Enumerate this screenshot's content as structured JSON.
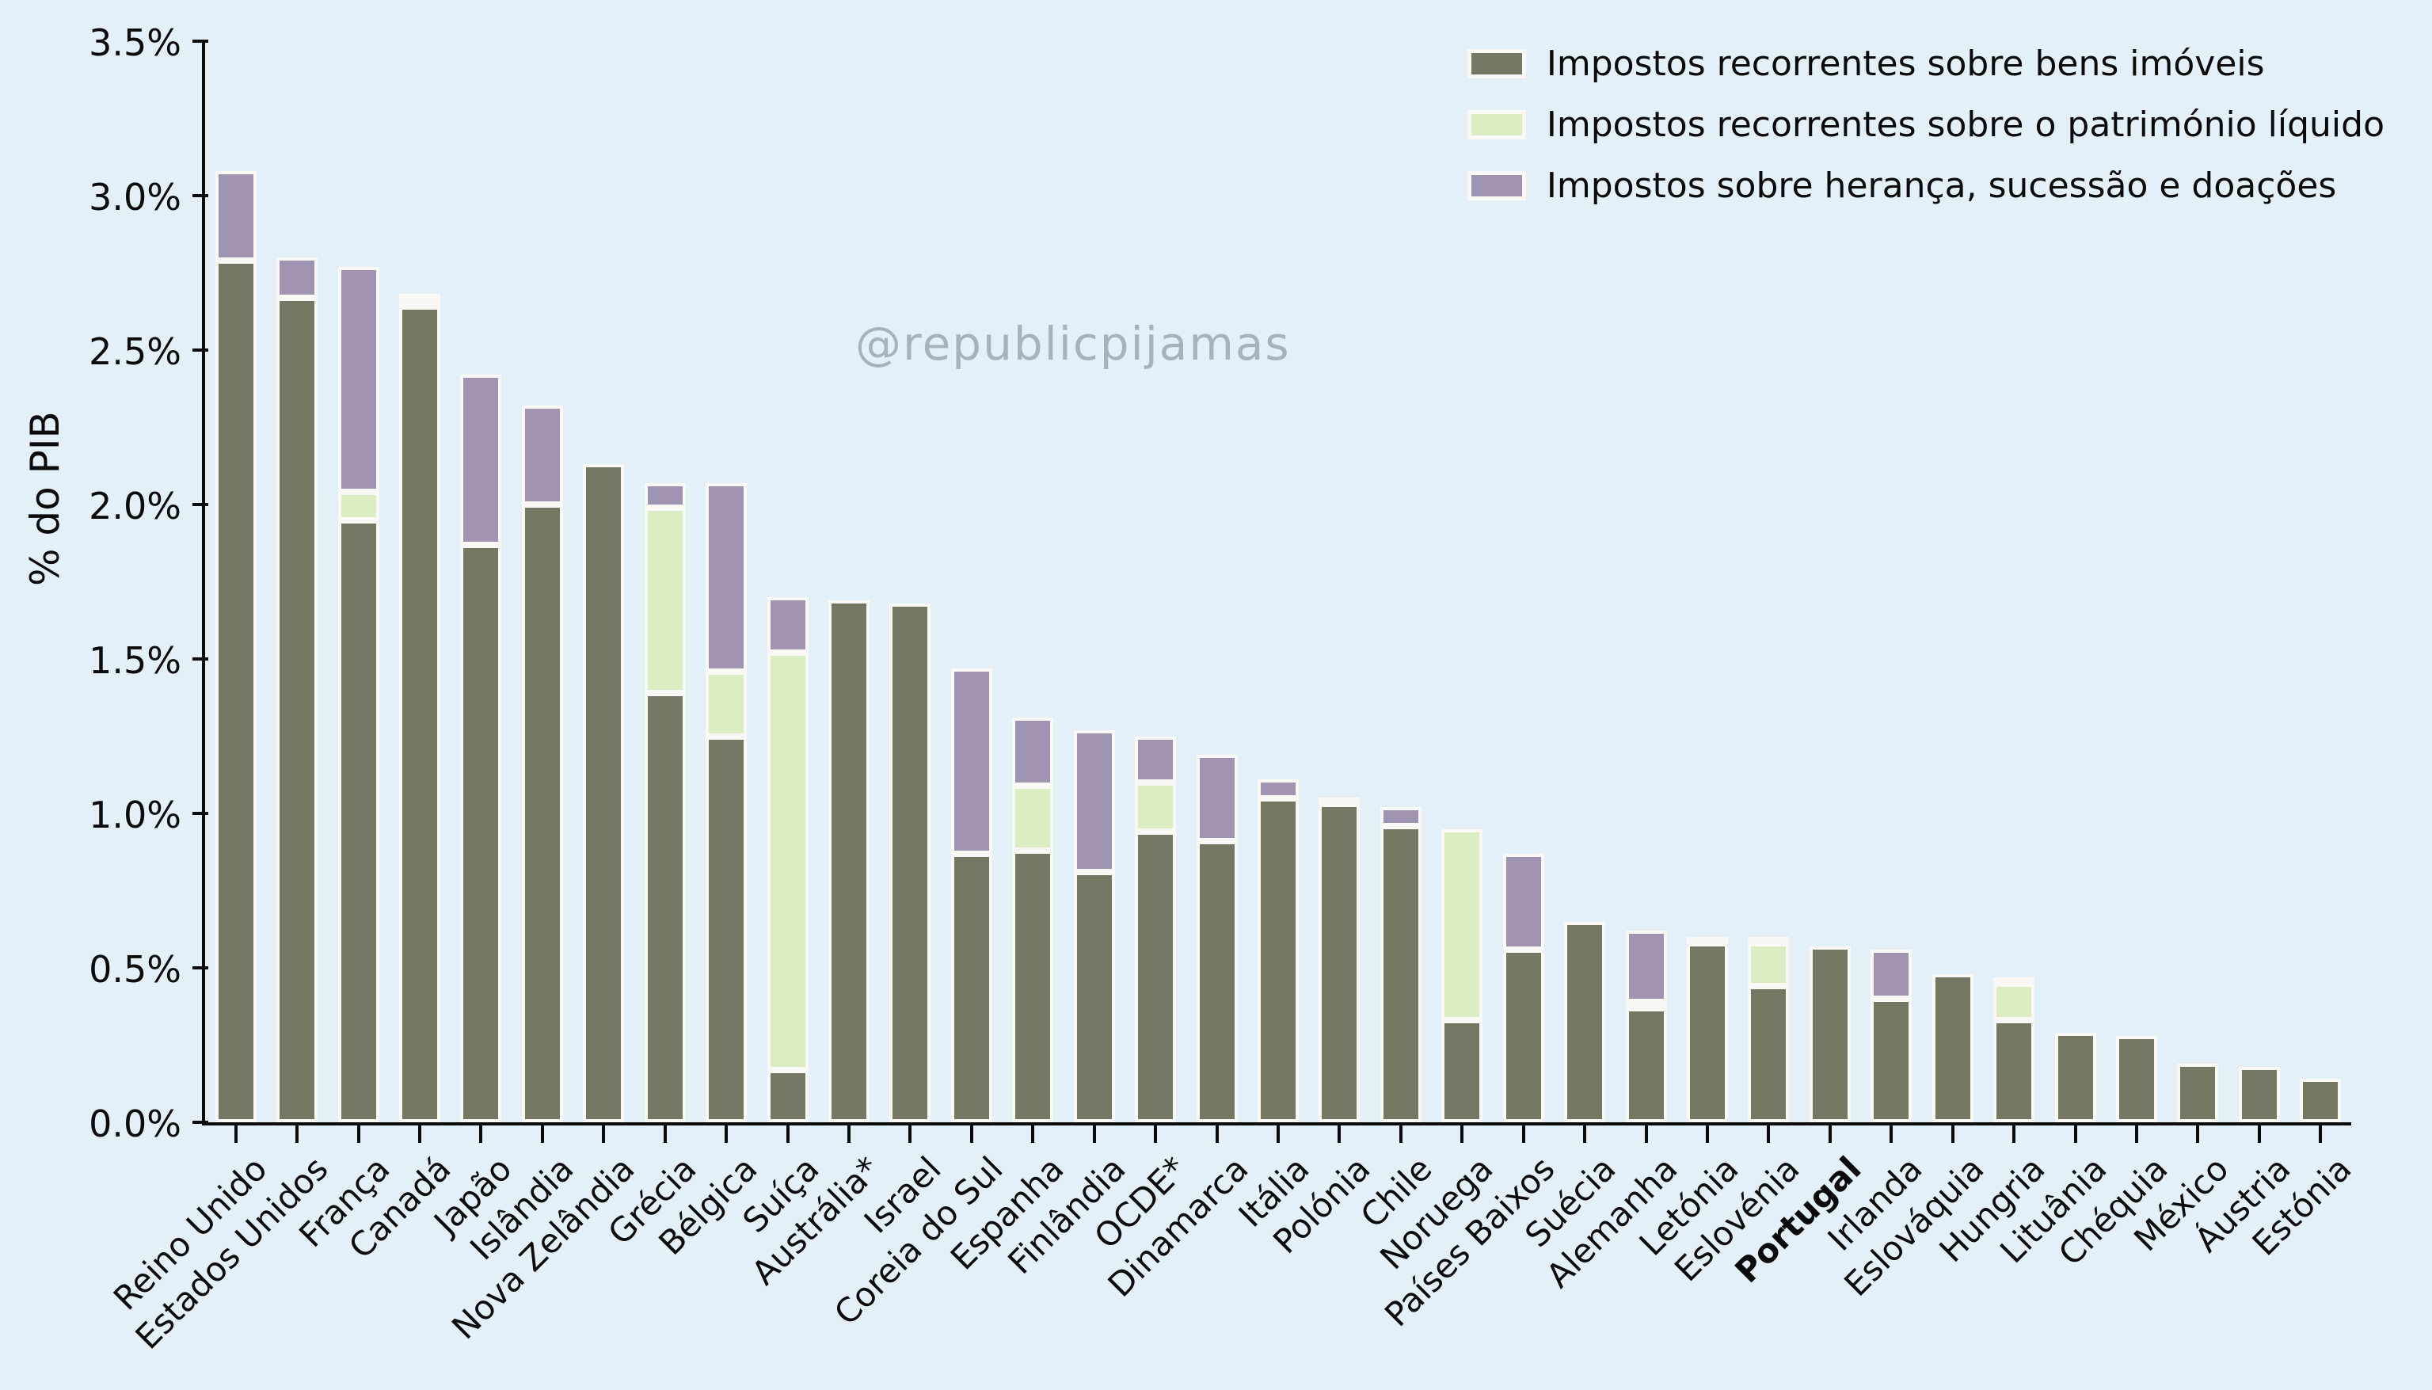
{
  "chart_data": {
    "type": "bar",
    "subtype": "stacked-vertical",
    "ylabel": "% do PIB",
    "watermark": "@republicpijamas",
    "ylim": [
      0,
      3.5
    ],
    "y_tick_labels": [
      "0.0%",
      "0.5%",
      "1.0%",
      "1.5%",
      "2.0%",
      "2.5%",
      "3.0%",
      "3.5%"
    ],
    "grid": false,
    "legend_position": "top-right",
    "bold_category": "Portugal",
    "categories": [
      "Reino Unido",
      "Estados Unidos",
      "França",
      "Canadá",
      "Japão",
      "Islândia",
      "Nova Zelândia",
      "Grécia",
      "Bélgica",
      "Suíça",
      "Austrália*",
      "Israel",
      "Coreia do Sul",
      "Espanha",
      "Finlândia",
      "OCDE*",
      "Dinamarca",
      "Itália",
      "Polónia",
      "Chile",
      "Noruega",
      "Países Baixos",
      "Suécia",
      "Alemanha",
      "Letónia",
      "Eslovénia",
      "Portugal",
      "Irlanda",
      "Eslováquia",
      "Hungria",
      "Lituânia",
      "Chéquia",
      "México",
      "Áustria",
      "Estónia"
    ],
    "series": [
      {
        "name": "Impostos recorrentes sobre bens imóveis",
        "color": "#737863",
        "values": [
          2.79,
          2.67,
          1.95,
          2.64,
          1.87,
          2.0,
          2.13,
          1.39,
          1.25,
          0.17,
          1.69,
          1.68,
          0.87,
          0.88,
          0.81,
          0.94,
          0.91,
          1.05,
          1.03,
          0.96,
          0.33,
          0.56,
          0.65,
          0.37,
          0.58,
          0.44,
          0.57,
          0.4,
          0.48,
          0.33,
          0.29,
          0.28,
          0.19,
          0.18,
          0.14
        ]
      },
      {
        "name": "Impostos recorrentes sobre o património líquido",
        "color": "#dcecc3",
        "values": [
          0,
          0,
          0.09,
          0.01,
          0,
          0,
          0,
          0.6,
          0.21,
          1.35,
          0,
          0,
          0,
          0.21,
          0,
          0.16,
          0,
          0,
          0,
          0,
          0.62,
          0,
          0,
          0.02,
          0,
          0.14,
          0,
          0,
          0,
          0.12,
          0,
          0,
          0,
          0,
          0
        ]
      },
      {
        "name": "Impostos sobre herança, sucessão e doações",
        "color": "#a092b1",
        "values": [
          0.29,
          0.13,
          0.73,
          0.02,
          0.55,
          0.32,
          0,
          0.08,
          0.61,
          0.18,
          0,
          0,
          0.6,
          0.22,
          0.46,
          0.15,
          0.28,
          0.06,
          0.02,
          0.06,
          0,
          0.31,
          0,
          0.23,
          0.02,
          0.02,
          0,
          0.16,
          0,
          0.02,
          0,
          0,
          0,
          0,
          0
        ]
      }
    ],
    "totals": [
      3.08,
      2.8,
      2.77,
      2.67,
      2.42,
      2.32,
      2.13,
      2.07,
      2.07,
      1.7,
      1.69,
      1.68,
      1.47,
      1.31,
      1.27,
      1.25,
      1.19,
      1.11,
      1.05,
      1.02,
      0.95,
      0.87,
      0.65,
      0.62,
      0.6,
      0.6,
      0.57,
      0.56,
      0.48,
      0.47,
      0.29,
      0.28,
      0.19,
      0.18,
      0.14
    ]
  },
  "colors": {
    "background": "#e3f0f8",
    "bar_edge": "#faf8f4",
    "axis": "#0b0b0b",
    "watermark_text": "#a6b2bd"
  }
}
